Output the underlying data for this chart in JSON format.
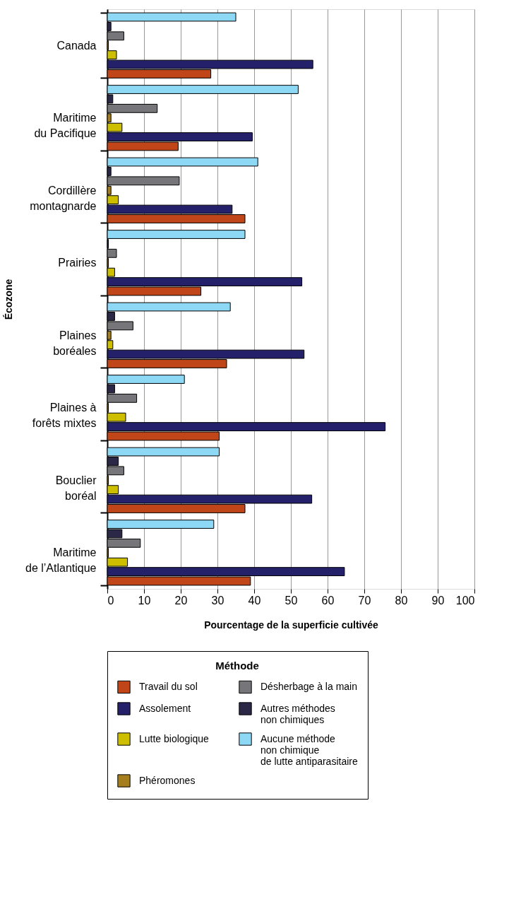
{
  "chart_data": {
    "type": "bar",
    "orientation": "horizontal",
    "xlabel": "Pourcentage de la superficie cultivée",
    "ylabel": "Écozone",
    "legend_title": "Méthode",
    "legend": "bottom",
    "grid": "x",
    "categories": [
      "Canada",
      "Maritime\ndu Pacifique",
      "Cordillère\nmontagnarde",
      "Prairies",
      "Plaines\nboréales",
      "Plaines à\nforêts mixtes",
      "Bouclier\nboréal",
      "Maritime\nde l’Atlantique"
    ],
    "xlim": [
      0,
      100
    ],
    "xticks": [
      0,
      10,
      20,
      30,
      40,
      50,
      60,
      70,
      80,
      90,
      100
    ],
    "series": [
      {
        "name": "Travail du sol",
        "color": "#c0461a",
        "values": [
          28.2,
          19.3,
          37.5,
          25.5,
          32.5,
          30.5,
          37.5,
          39
        ]
      },
      {
        "name": "Assolement",
        "color": "#24206a",
        "values": [
          56,
          39.5,
          34,
          53,
          53.6,
          75.7,
          55.7,
          64.6
        ]
      },
      {
        "name": "Lutte biologique",
        "color": "#cdbf00",
        "values": [
          2.5,
          4,
          3,
          2,
          1.5,
          5,
          3,
          5.5
        ]
      },
      {
        "name": "Phéromones",
        "color": "#a57f1e",
        "values": [
          0.3,
          1,
          1,
          0.3,
          1,
          0.3,
          0.3,
          0.3
        ]
      },
      {
        "name": "Désherbage à la main",
        "color": "#76767a",
        "values": [
          4.5,
          13.6,
          19.6,
          2.5,
          7,
          8,
          4.5,
          9
        ]
      },
      {
        "name": "Autres méthodes\nnon chimiques",
        "color": "#2a2846",
        "values": [
          1,
          1.5,
          1,
          0.3,
          2,
          2,
          3,
          4
        ]
      },
      {
        "name": "Aucune méthode\nnon chimique\nde lutte antiparasitaire",
        "color": "#8cd8f5",
        "values": [
          35,
          52,
          41,
          37.5,
          33.5,
          21,
          30.5,
          29
        ]
      }
    ]
  }
}
